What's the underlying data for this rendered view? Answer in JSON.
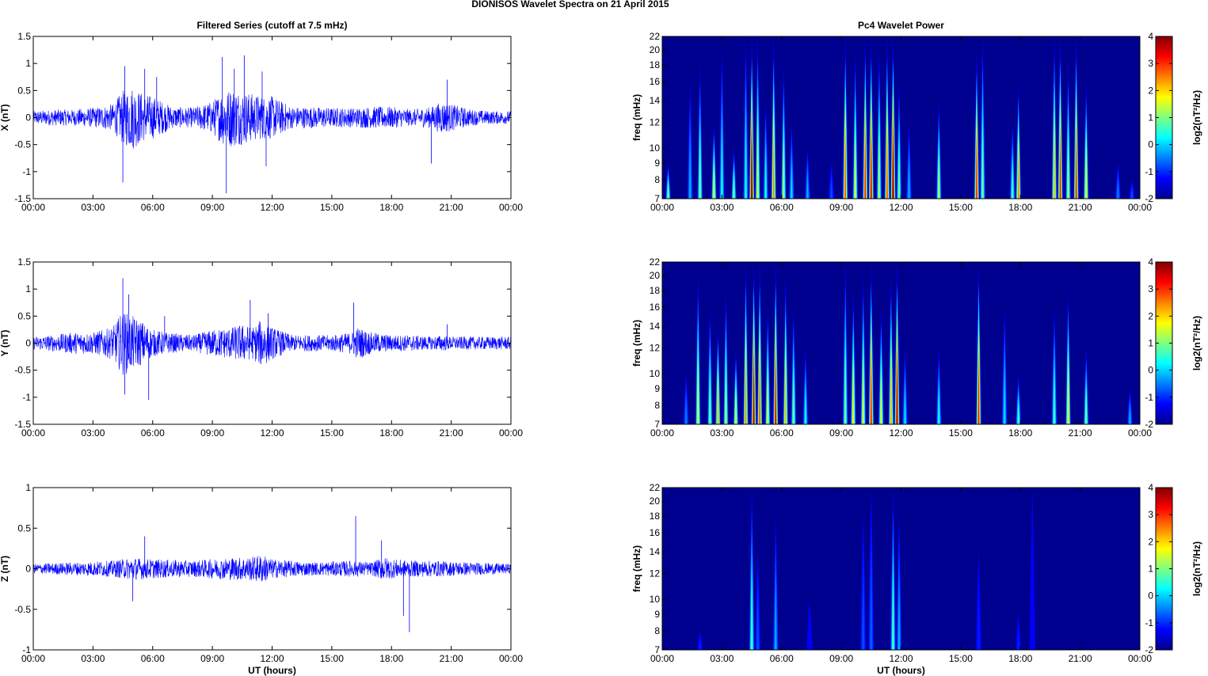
{
  "figure": {
    "suptitle": "DIONISOS Wavelet Spectra on 21 April     2015"
  },
  "chart_data": [
    {
      "type": "line",
      "panel": "X",
      "title": "Filtered Series (cutoff at 7.5 mHz)",
      "xlabel": "",
      "ylabel": "X (nT)",
      "ylim": [
        -1.5,
        1.5
      ],
      "yticks": [
        "-1.5",
        "-1",
        "-0.5",
        "0",
        "0.5",
        "1",
        "1.5"
      ],
      "xlim_hours": [
        0,
        24
      ],
      "xticks": [
        "00:00",
        "03:00",
        "06:00",
        "09:00",
        "12:00",
        "15:00",
        "18:00",
        "21:00",
        "00:00"
      ],
      "color": "#0000ff",
      "series": [
        {
          "envelope_hours": [
            0,
            1,
            2,
            3,
            4,
            4.5,
            5,
            5.5,
            6,
            7,
            8,
            9,
            9.5,
            10,
            10.5,
            11,
            11.5,
            12,
            13,
            14,
            15,
            16,
            17,
            18,
            19,
            20,
            20.5,
            21,
            22,
            23,
            24
          ],
          "envelope_nT": [
            0.12,
            0.15,
            0.15,
            0.18,
            0.25,
            0.5,
            0.6,
            0.45,
            0.4,
            0.2,
            0.18,
            0.3,
            0.5,
            0.55,
            0.5,
            0.45,
            0.4,
            0.4,
            0.2,
            0.2,
            0.18,
            0.18,
            0.2,
            0.2,
            0.15,
            0.2,
            0.3,
            0.25,
            0.15,
            0.12,
            0.12
          ],
          "spike_hours": [
            4.5,
            4.6,
            5.6,
            6.2,
            9.5,
            9.7,
            10.1,
            10.6,
            11.5,
            11.7,
            20.0,
            20.8
          ],
          "spike_values": [
            -1.2,
            0.95,
            0.9,
            0.75,
            1.12,
            -1.4,
            0.9,
            1.15,
            0.85,
            -0.9,
            -0.85,
            0.7
          ]
        }
      ]
    },
    {
      "type": "line",
      "panel": "Y",
      "title": "",
      "xlabel": "",
      "ylabel": "Y (nT)",
      "ylim": [
        -1.5,
        1.5
      ],
      "yticks": [
        "-1.5",
        "-1",
        "-0.5",
        "0",
        "0.5",
        "1",
        "1.5"
      ],
      "xlim_hours": [
        0,
        24
      ],
      "xticks": [
        "00:00",
        "03:00",
        "06:00",
        "09:00",
        "12:00",
        "15:00",
        "18:00",
        "21:00",
        "00:00"
      ],
      "color": "#0000ff",
      "series": [
        {
          "envelope_hours": [
            0,
            1,
            2,
            3,
            4,
            4.5,
            5,
            5.5,
            6,
            7,
            8,
            9,
            10,
            10.5,
            11,
            11.5,
            12,
            13,
            14,
            15,
            16,
            16.3,
            17,
            18,
            19,
            20,
            20.5,
            21,
            22,
            23,
            24
          ],
          "envelope_nT": [
            0.12,
            0.15,
            0.2,
            0.2,
            0.3,
            0.6,
            0.5,
            0.4,
            0.25,
            0.18,
            0.15,
            0.25,
            0.3,
            0.35,
            0.3,
            0.45,
            0.3,
            0.15,
            0.15,
            0.15,
            0.2,
            0.3,
            0.2,
            0.15,
            0.15,
            0.12,
            0.15,
            0.12,
            0.12,
            0.12,
            0.12
          ],
          "spike_hours": [
            4.5,
            4.6,
            4.8,
            5.8,
            6.6,
            10.9,
            11.8,
            16.1,
            20.8
          ],
          "spike_values": [
            1.2,
            -0.95,
            0.9,
            -1.05,
            0.5,
            0.8,
            0.55,
            0.75,
            0.35
          ]
        }
      ]
    },
    {
      "type": "line",
      "panel": "Z",
      "title": "",
      "xlabel": "UT (hours)",
      "ylabel": "Z (nT)",
      "ylim": [
        -1,
        1
      ],
      "yticks": [
        "-1",
        "-0.5",
        "0",
        "0.5",
        "1"
      ],
      "xlim_hours": [
        0,
        24
      ],
      "xticks": [
        "00:00",
        "03:00",
        "06:00",
        "09:00",
        "12:00",
        "15:00",
        "18:00",
        "21:00",
        "00:00"
      ],
      "color": "#0000ff",
      "series": [
        {
          "envelope_hours": [
            0,
            2,
            4,
            5,
            6,
            8,
            9,
            10,
            11,
            11.5,
            12,
            14,
            16,
            17,
            17.6,
            18,
            19,
            20,
            22,
            24
          ],
          "envelope_nT": [
            0.06,
            0.08,
            0.1,
            0.14,
            0.12,
            0.1,
            0.12,
            0.14,
            0.15,
            0.18,
            0.12,
            0.08,
            0.1,
            0.08,
            0.15,
            0.12,
            0.1,
            0.1,
            0.08,
            0.06
          ],
          "spike_hours": [
            5.0,
            5.6,
            16.2,
            17.5,
            18.6,
            18.9
          ],
          "spike_values": [
            -0.4,
            0.4,
            0.65,
            0.35,
            -0.58,
            -0.78
          ]
        }
      ]
    },
    {
      "type": "heatmap",
      "panel": "X",
      "title": "Pc4 Wavelet Power",
      "xlabel": "",
      "ylabel": "freq (mHz)",
      "y_scale": "log",
      "ylim_mHz": [
        7,
        22
      ],
      "yticks": [
        "7",
        "8",
        "9",
        "10",
        "12",
        "14",
        "16",
        "18",
        "20",
        "22"
      ],
      "xlim_hours": [
        0,
        24
      ],
      "xticks": [
        "00:00",
        "03:00",
        "06:00",
        "09:00",
        "12:00",
        "15:00",
        "18:00",
        "21:00",
        "00:00"
      ],
      "colorbar_label": "log2(nT²/Hz)",
      "colorbar_range": [
        -2,
        4
      ],
      "colorbar_ticks": [
        "-2",
        "-1",
        "0",
        "1",
        "2",
        "3",
        "4"
      ],
      "bursts": [
        {
          "t": 0.3,
          "lvl": 0.5,
          "top": 9
        },
        {
          "t": 1.4,
          "lvl": 0.3,
          "top": 16
        },
        {
          "t": 1.9,
          "lvl": 0.5,
          "top": 18
        },
        {
          "t": 2.6,
          "lvl": 0.6,
          "top": 12
        },
        {
          "t": 3.0,
          "lvl": 0.4,
          "top": 20
        },
        {
          "t": 3.6,
          "lvl": 0.5,
          "top": 10
        },
        {
          "t": 4.2,
          "lvl": 0.4,
          "top": 22
        },
        {
          "t": 4.5,
          "lvl": 1.0,
          "top": 22
        },
        {
          "t": 4.8,
          "lvl": 0.6,
          "top": 22
        },
        {
          "t": 5.2,
          "lvl": 0.4,
          "top": 14
        },
        {
          "t": 5.6,
          "lvl": 0.75,
          "top": 22
        },
        {
          "t": 6.1,
          "lvl": 0.55,
          "top": 18
        },
        {
          "t": 6.5,
          "lvl": 0.35,
          "top": 12
        },
        {
          "t": 7.3,
          "lvl": 0.3,
          "top": 10
        },
        {
          "t": 8.5,
          "lvl": 0.2,
          "top": 9
        },
        {
          "t": 9.2,
          "lvl": 0.8,
          "top": 22
        },
        {
          "t": 9.7,
          "lvl": 0.6,
          "top": 20
        },
        {
          "t": 10.2,
          "lvl": 0.85,
          "top": 22
        },
        {
          "t": 10.5,
          "lvl": 0.9,
          "top": 22
        },
        {
          "t": 10.9,
          "lvl": 0.55,
          "top": 20
        },
        {
          "t": 11.3,
          "lvl": 0.8,
          "top": 22
        },
        {
          "t": 11.6,
          "lvl": 1.0,
          "top": 22
        },
        {
          "t": 11.9,
          "lvl": 0.5,
          "top": 16
        },
        {
          "t": 12.4,
          "lvl": 0.3,
          "top": 12
        },
        {
          "t": 13.9,
          "lvl": 0.55,
          "top": 14
        },
        {
          "t": 15.8,
          "lvl": 0.85,
          "top": 20
        },
        {
          "t": 16.1,
          "lvl": 0.5,
          "top": 22
        },
        {
          "t": 17.6,
          "lvl": 0.45,
          "top": 12
        },
        {
          "t": 17.9,
          "lvl": 0.75,
          "top": 16
        },
        {
          "t": 19.7,
          "lvl": 0.7,
          "top": 22
        },
        {
          "t": 20.0,
          "lvl": 0.85,
          "top": 22
        },
        {
          "t": 20.4,
          "lvl": 0.55,
          "top": 18
        },
        {
          "t": 20.8,
          "lvl": 0.85,
          "top": 22
        },
        {
          "t": 21.3,
          "lvl": 0.65,
          "top": 16
        },
        {
          "t": 22.9,
          "lvl": 0.25,
          "top": 9
        },
        {
          "t": 23.6,
          "lvl": 0.2,
          "top": 8
        }
      ]
    },
    {
      "type": "heatmap",
      "panel": "Y",
      "title": "",
      "xlabel": "",
      "ylabel": "freq (mHz)",
      "y_scale": "log",
      "ylim_mHz": [
        7,
        22
      ],
      "yticks": [
        "7",
        "8",
        "9",
        "10",
        "12",
        "14",
        "16",
        "18",
        "20",
        "22"
      ],
      "xlim_hours": [
        0,
        24
      ],
      "xticks": [
        "00:00",
        "03:00",
        "06:00",
        "09:00",
        "12:00",
        "15:00",
        "18:00",
        "21:00",
        "00:00"
      ],
      "colorbar_label": "log2(nT²/Hz)",
      "colorbar_range": [
        -2,
        4
      ],
      "colorbar_ticks": [
        "-2",
        "-1",
        "0",
        "1",
        "2",
        "3",
        "4"
      ],
      "bursts": [
        {
          "t": 1.2,
          "lvl": 0.25,
          "top": 10
        },
        {
          "t": 1.8,
          "lvl": 0.6,
          "top": 20
        },
        {
          "t": 2.4,
          "lvl": 0.5,
          "top": 16
        },
        {
          "t": 2.8,
          "lvl": 0.7,
          "top": 14
        },
        {
          "t": 3.2,
          "lvl": 0.55,
          "top": 18
        },
        {
          "t": 3.7,
          "lvl": 0.6,
          "top": 12
        },
        {
          "t": 4.2,
          "lvl": 0.75,
          "top": 22
        },
        {
          "t": 4.6,
          "lvl": 0.95,
          "top": 22
        },
        {
          "t": 4.9,
          "lvl": 0.8,
          "top": 22
        },
        {
          "t": 5.3,
          "lvl": 0.6,
          "top": 16
        },
        {
          "t": 5.7,
          "lvl": 0.9,
          "top": 22
        },
        {
          "t": 6.2,
          "lvl": 0.7,
          "top": 20
        },
        {
          "t": 6.6,
          "lvl": 0.5,
          "top": 16
        },
        {
          "t": 7.2,
          "lvl": 0.4,
          "top": 12
        },
        {
          "t": 9.2,
          "lvl": 0.5,
          "top": 22
        },
        {
          "t": 9.6,
          "lvl": 0.65,
          "top": 18
        },
        {
          "t": 10.1,
          "lvl": 0.6,
          "top": 20
        },
        {
          "t": 10.5,
          "lvl": 0.85,
          "top": 22
        },
        {
          "t": 11.0,
          "lvl": 0.6,
          "top": 16
        },
        {
          "t": 11.5,
          "lvl": 0.7,
          "top": 20
        },
        {
          "t": 11.8,
          "lvl": 0.95,
          "top": 22
        },
        {
          "t": 12.2,
          "lvl": 0.35,
          "top": 12
        },
        {
          "t": 13.9,
          "lvl": 0.4,
          "top": 12
        },
        {
          "t": 15.9,
          "lvl": 0.85,
          "top": 22
        },
        {
          "t": 17.2,
          "lvl": 0.35,
          "top": 16
        },
        {
          "t": 17.9,
          "lvl": 0.45,
          "top": 10
        },
        {
          "t": 19.7,
          "lvl": 0.45,
          "top": 16
        },
        {
          "t": 20.4,
          "lvl": 0.65,
          "top": 18
        },
        {
          "t": 21.3,
          "lvl": 0.5,
          "top": 12
        },
        {
          "t": 23.5,
          "lvl": 0.3,
          "top": 9
        }
      ]
    },
    {
      "type": "heatmap",
      "panel": "Z",
      "title": "",
      "xlabel": "UT (hours)",
      "ylabel": "freq (mHz)",
      "y_scale": "log",
      "ylim_mHz": [
        7,
        22
      ],
      "yticks": [
        "7",
        "8",
        "9",
        "10",
        "12",
        "14",
        "16",
        "18",
        "20",
        "22"
      ],
      "xlim_hours": [
        0,
        24
      ],
      "xticks": [
        "00:00",
        "03:00",
        "06:00",
        "09:00",
        "12:00",
        "15:00",
        "18:00",
        "21:00",
        "00:00"
      ],
      "colorbar_label": "log2(nT²/Hz)",
      "colorbar_range": [
        -2,
        4
      ],
      "colorbar_ticks": [
        "-2",
        "-1",
        "0",
        "1",
        "2",
        "3",
        "4"
      ],
      "bursts": [
        {
          "t": 1.9,
          "lvl": 0.15,
          "top": 8
        },
        {
          "t": 4.5,
          "lvl": 0.45,
          "top": 22
        },
        {
          "t": 4.8,
          "lvl": 0.2,
          "top": 14
        },
        {
          "t": 5.7,
          "lvl": 0.3,
          "top": 18
        },
        {
          "t": 7.4,
          "lvl": 0.12,
          "top": 10
        },
        {
          "t": 10.1,
          "lvl": 0.2,
          "top": 18
        },
        {
          "t": 10.5,
          "lvl": 0.22,
          "top": 22
        },
        {
          "t": 11.6,
          "lvl": 0.45,
          "top": 22
        },
        {
          "t": 11.9,
          "lvl": 0.3,
          "top": 18
        },
        {
          "t": 15.9,
          "lvl": 0.15,
          "top": 14
        },
        {
          "t": 17.9,
          "lvl": 0.15,
          "top": 9
        },
        {
          "t": 18.6,
          "lvl": 0.12,
          "top": 22
        }
      ]
    }
  ]
}
